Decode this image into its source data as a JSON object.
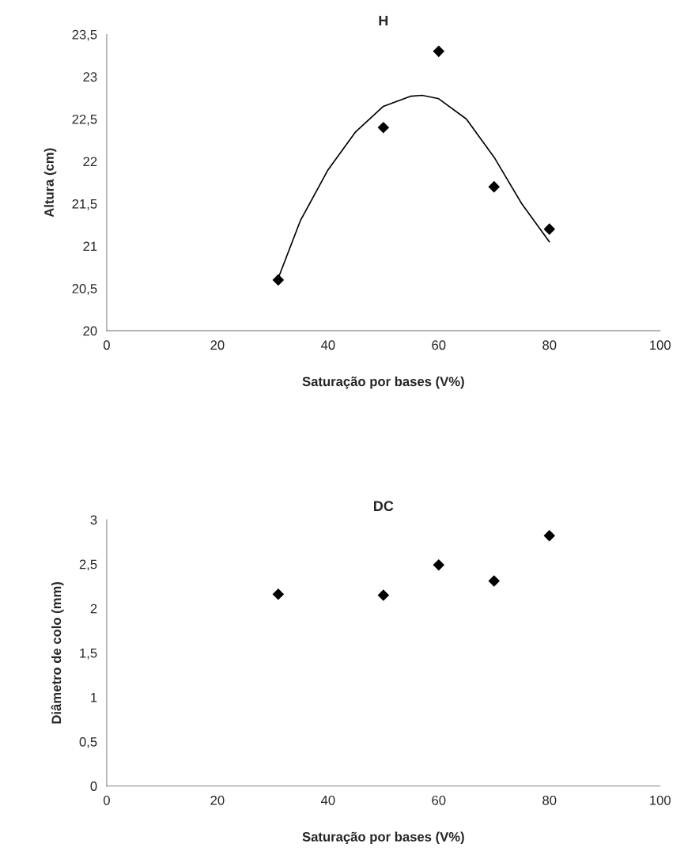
{
  "chart_data": [
    {
      "type": "scatter",
      "title": "H",
      "xlabel": "Saturação por bases (V%)",
      "ylabel": "Altura (cm)",
      "series": [
        {
          "color": "#000000",
          "marker": "diamond",
          "x": [
            31,
            50,
            60,
            70,
            80
          ],
          "values": [
            20.6,
            22.4,
            23.3,
            21.7,
            21.2
          ]
        },
        {
          "type": "line",
          "color": "#000000",
          "marker": "none",
          "x": [
            31,
            35,
            40,
            45,
            50,
            55,
            57,
            60,
            65,
            70,
            75,
            80
          ],
          "values": [
            20.62,
            21.3,
            21.9,
            22.35,
            22.65,
            22.77,
            22.78,
            22.74,
            22.5,
            22.05,
            21.5,
            21.05
          ]
        }
      ],
      "xlim": [
        0,
        100
      ],
      "xticks": [
        0,
        20,
        40,
        60,
        80,
        100
      ],
      "ylim": [
        20,
        23.5
      ],
      "yticks": [
        20,
        {
          "value": 20.5,
          "label": "20,5"
        },
        21,
        {
          "value": 21.5,
          "label": "21,5"
        },
        22,
        {
          "value": 22.5,
          "label": "22,5"
        },
        23,
        {
          "value": 23.5,
          "label": "23,5"
        }
      ],
      "grid": false,
      "legend": false
    },
    {
      "type": "scatter",
      "title": "DC",
      "xlabel": "Saturação por bases (V%)",
      "ylabel": "Diâmetro de colo (mm)",
      "series": [
        {
          "color": "#000000",
          "marker": "diamond",
          "x": [
            31,
            50,
            60,
            70,
            80
          ],
          "values": [
            2.16,
            2.15,
            2.49,
            2.31,
            2.82
          ]
        }
      ],
      "xlim": [
        0,
        100
      ],
      "xticks": [
        0,
        20,
        40,
        60,
        80,
        100
      ],
      "ylim": [
        0,
        3
      ],
      "yticks": [
        0,
        {
          "value": 0.5,
          "label": "0,5"
        },
        1,
        {
          "value": 1.5,
          "label": "1,5"
        },
        2,
        {
          "value": 2.5,
          "label": "2,5"
        },
        3
      ],
      "grid": false,
      "legend": false
    }
  ]
}
